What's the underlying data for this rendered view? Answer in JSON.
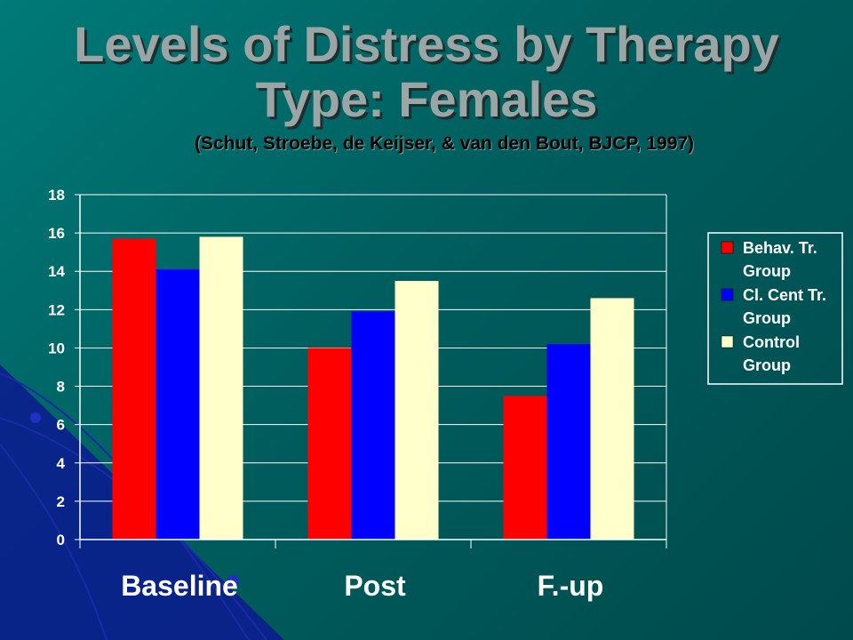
{
  "slide": {
    "title_line1": "Levels of Distress by Therapy",
    "title_line2": "Type: Females",
    "subtitle": "(Schut, Stroebe, de Keijser, & van den Bout, BJCP, 1997)"
  },
  "chart_data": {
    "type": "bar",
    "categories": [
      "Baseline",
      "Post",
      "F.-up"
    ],
    "series": [
      {
        "name": "Behav. Tr. Group",
        "legend_lines": [
          "Behav. Tr.",
          "Group"
        ],
        "color": "#ff0000",
        "values": [
          15.7,
          10.0,
          7.5
        ]
      },
      {
        "name": "Cl. Cent Tr. Group",
        "legend_lines": [
          "Cl. Cent Tr.",
          "Group"
        ],
        "color": "#0000ff",
        "values": [
          14.1,
          11.9,
          10.2
        ]
      },
      {
        "name": "Control Group",
        "legend_lines": [
          "Control",
          "Group"
        ],
        "color": "#ffffcc",
        "values": [
          15.8,
          13.5,
          12.6
        ]
      }
    ],
    "ylim": [
      0,
      18
    ],
    "yticks": [
      0,
      2,
      4,
      6,
      8,
      10,
      12,
      14,
      16,
      18
    ],
    "grid": true,
    "legend_position": "right"
  }
}
